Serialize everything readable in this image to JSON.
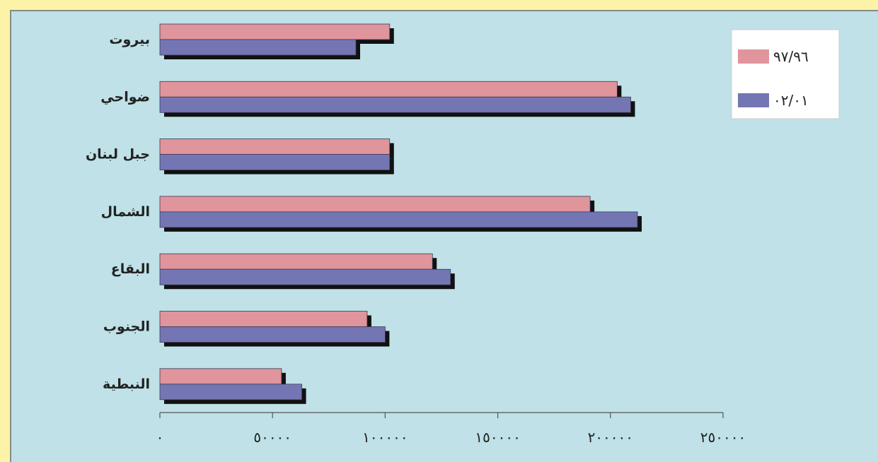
{
  "chart_data": {
    "type": "bar",
    "orientation": "horizontal",
    "categories": [
      "بيروت",
      "ضواحي",
      "جبل لبنان",
      "الشمال",
      "البقاع",
      "الجنوب",
      "النبطية"
    ],
    "series": [
      {
        "name": "٩٧/٩٦",
        "color": "#e0949b",
        "values": [
          102000,
          203000,
          102000,
          191000,
          121000,
          92000,
          54000
        ]
      },
      {
        "name": "٠٢/٠١",
        "color": "#7476b4",
        "values": [
          87000,
          209000,
          102000,
          212000,
          129000,
          100000,
          63000
        ]
      }
    ],
    "xlim": [
      0,
      250000
    ],
    "x_ticks": [
      0,
      50000,
      100000,
      150000,
      200000,
      250000
    ],
    "x_tick_labels": [
      "٠",
      "٥٠٠٠٠",
      "١٠٠٠٠٠",
      "١٥٠٠٠٠",
      "٢٠٠٠٠٠",
      "٢٥٠٠٠٠"
    ],
    "legend_position": "top-right",
    "grid": false
  }
}
